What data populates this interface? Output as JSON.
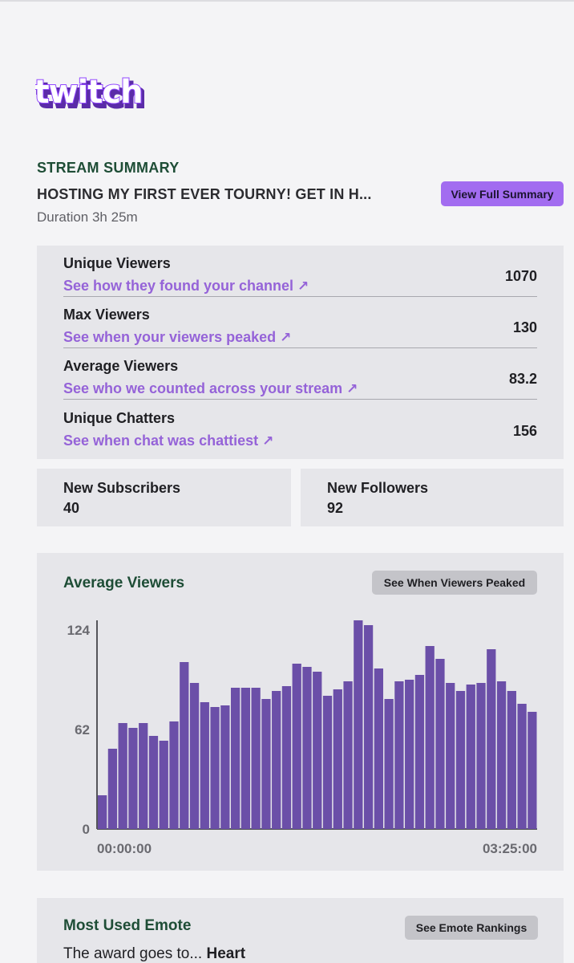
{
  "brand": {
    "logo_text": "twitch",
    "color": "#9146ff"
  },
  "summary": {
    "section_label": "STREAM SUMMARY",
    "title": "HOSTING MY FIRST EVER TOURNY! GET IN H...",
    "view_full_label": "View Full Summary",
    "duration": "Duration 3h 25m"
  },
  "stats": [
    {
      "title": "Unique Viewers",
      "link": "See how they found your channel",
      "value": "1070"
    },
    {
      "title": "Max Viewers",
      "link": "See when your viewers peaked",
      "value": "130"
    },
    {
      "title": "Average Viewers",
      "link": "See who we counted across your stream",
      "value": "83.2"
    },
    {
      "title": "Unique Chatters",
      "link": "See when chat was chattiest",
      "value": "156"
    }
  ],
  "link_arrow_icon": "arrow-up-right-icon",
  "new_subscribers": {
    "title": "New Subscribers",
    "value": "40"
  },
  "new_followers": {
    "title": "New Followers",
    "value": "92"
  },
  "avg_viewers_chart": {
    "heading": "Average Viewers",
    "button_label": "See When Viewers Peaked"
  },
  "chart_data": {
    "type": "bar",
    "title": "Average Viewers",
    "xlabel": "",
    "ylabel": "",
    "x_tick_labels": [
      "00:00:00",
      "03:25:00"
    ],
    "y_ticks": [
      0,
      62,
      124
    ],
    "ylim": [
      0,
      130
    ],
    "bar_color": "#6b4fa8",
    "values": [
      21,
      50,
      66,
      63,
      66,
      58,
      55,
      67,
      104,
      91,
      79,
      76,
      77,
      88,
      88,
      88,
      81,
      86,
      89,
      103,
      101,
      98,
      83,
      87,
      92,
      130,
      127,
      100,
      81,
      92,
      93,
      96,
      114,
      106,
      91,
      86,
      90,
      91,
      112,
      92,
      86,
      78,
      73
    ]
  },
  "emote": {
    "heading": "Most Used Emote",
    "button_label": "See Emote Rankings",
    "prefix": "The award goes to...",
    "name": "Heart"
  }
}
